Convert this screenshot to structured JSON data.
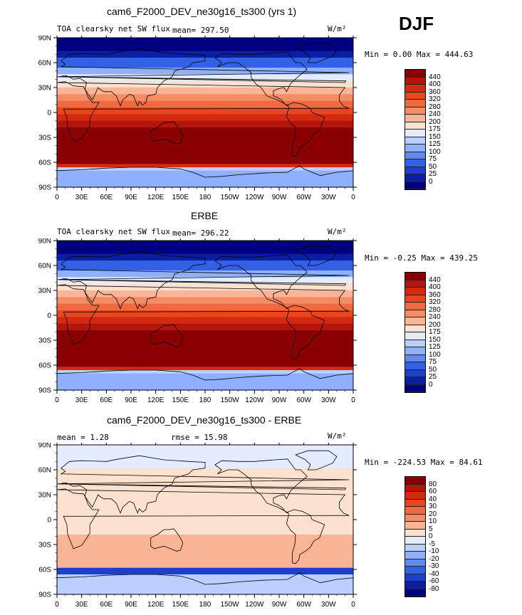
{
  "season": "DJF",
  "panels": [
    {
      "title": "cam6_F2000_DEV_ne30g16_ts300 (yrs 1)",
      "variable": "TOA clearsky net SW flux",
      "mean_text": "mean= 297.50",
      "rmse_text": "",
      "units": "W/m²",
      "minmax": "Min =    0.00 Max = 444.63",
      "colorbar_labels": [
        "440",
        "400",
        "360",
        "320",
        "280",
        "240",
        "200",
        "175",
        "150",
        "125",
        "100",
        "75",
        "50",
        "25",
        "0"
      ],
      "colorbar_colors": [
        "#8a0000",
        "#b3140d",
        "#d42a10",
        "#e8461f",
        "#f06a40",
        "#f58c66",
        "#f9b596",
        "#fde1cf",
        "#e4ecff",
        "#bcd0ff",
        "#8eb0ff",
        "#5f8af4",
        "#3361e6",
        "#1c3fcc",
        "#0a1fa3",
        "#000080"
      ]
    },
    {
      "title": "ERBE",
      "variable": "TOA clearsky net SW flux",
      "mean_text": "mean= 296.22",
      "rmse_text": "",
      "units": "W/m²",
      "minmax": "Min =  -0.25 Max = 439.25",
      "colorbar_labels": [
        "440",
        "400",
        "360",
        "320",
        "280",
        "240",
        "200",
        "175",
        "150",
        "125",
        "100",
        "75",
        "50",
        "25",
        "0"
      ],
      "colorbar_colors": [
        "#8a0000",
        "#b3140d",
        "#d42a10",
        "#e8461f",
        "#f06a40",
        "#f58c66",
        "#f9b596",
        "#fde1cf",
        "#e4ecff",
        "#bcd0ff",
        "#8eb0ff",
        "#5f8af4",
        "#3361e6",
        "#1c3fcc",
        "#0a1fa3",
        "#000080"
      ]
    },
    {
      "title": "cam6_F2000_DEV_ne30g16_ts300 - ERBE",
      "variable": "",
      "mean_text": "mean =    1.28",
      "rmse_text": "rmse =   15.98",
      "units": "W/m²",
      "minmax": "Min = -224.53 Max =  84.61",
      "colorbar_labels": [
        "80",
        "60",
        "40",
        "30",
        "20",
        "10",
        "5",
        "0",
        "-5",
        "-10",
        "-20",
        "-30",
        "-40",
        "-60",
        "-80"
      ],
      "colorbar_colors": [
        "#8a0000",
        "#b3140d",
        "#d42a10",
        "#e8461f",
        "#f06a40",
        "#f58c66",
        "#f9b596",
        "#fde1cf",
        "#e4ecff",
        "#bcd0ff",
        "#8eb0ff",
        "#5f8af4",
        "#3361e6",
        "#1c3fcc",
        "#0a1fa3",
        "#000080"
      ]
    }
  ],
  "lat_labels": [
    "90N",
    "60N",
    "30N",
    "0",
    "30S",
    "60S",
    "90S"
  ],
  "lon_labels": [
    "0",
    "30E",
    "60E",
    "90E",
    "120E",
    "150E",
    "180",
    "150W",
    "120W",
    "90W",
    "60W",
    "30W",
    "0"
  ]
}
